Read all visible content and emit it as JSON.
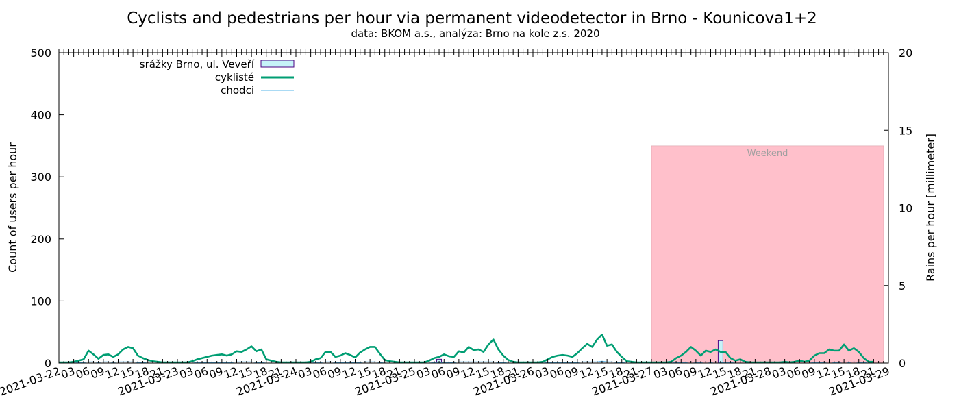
{
  "chart_data": {
    "type": "line",
    "title": "Cyclists and pedestrians per hour via permanent videodetector in Brno - Kounicova1+2",
    "subtitle": "data: BKOM a.s., analýza: Brno na kole z.s. 2020",
    "ylabel": "Count of users per hour",
    "y2label": "Rains per hour [millimeter]",
    "ylim": [
      0,
      500
    ],
    "y2lim": [
      0,
      20
    ],
    "yticks": [
      "0",
      "100",
      "200",
      "300",
      "400",
      "500"
    ],
    "y2ticks": [
      "0",
      "5",
      "10",
      "15",
      "20"
    ],
    "xrange": [
      "2021-03-22 00:00",
      "2021-03-29 00:00"
    ],
    "x_step_hours": 3,
    "xtick_hour_labels": [
      "03",
      "06",
      "09",
      "12",
      "15",
      "18",
      "21"
    ],
    "xtick_day_labels": [
      "2021-03-22",
      "2021-03-23",
      "2021-03-24",
      "2021-03-25",
      "2021-03-26",
      "2021-03-27",
      "2021-03-28",
      "2021-03-29"
    ],
    "legend": {
      "position": "top-left",
      "entries": [
        "srážky Brno, ul. Veveří",
        "cyklisté",
        "chodci"
      ]
    },
    "weekend": {
      "label": "Weekend",
      "start": "2021-03-27 00:00",
      "end": "2021-03-29 00:00",
      "ytop": 350
    },
    "series": [
      {
        "name": "cyklisté",
        "color": "#009e73",
        "values": [
          1,
          1,
          1,
          2,
          4,
          6,
          20,
          14,
          7,
          13,
          14,
          10,
          14,
          22,
          26,
          24,
          12,
          8,
          5,
          3,
          2,
          1,
          1,
          1,
          1,
          1,
          1,
          3,
          6,
          8,
          10,
          12,
          13,
          14,
          12,
          14,
          19,
          18,
          22,
          27,
          19,
          22,
          6,
          4,
          2,
          1,
          1,
          1,
          1,
          1,
          1,
          2,
          6,
          8,
          18,
          18,
          10,
          12,
          16,
          13,
          9,
          17,
          22,
          26,
          26,
          15,
          5,
          3,
          2,
          1,
          1,
          1,
          1,
          1,
          1,
          4,
          8,
          10,
          14,
          11,
          10,
          19,
          17,
          26,
          21,
          22,
          18,
          30,
          38,
          22,
          12,
          5,
          2,
          1,
          1,
          1,
          1,
          1,
          2,
          6,
          10,
          12,
          13,
          12,
          10,
          16,
          24,
          31,
          26,
          38,
          46,
          28,
          30,
          18,
          10,
          3,
          2,
          1,
          1,
          1,
          1,
          1,
          1,
          1,
          2,
          8,
          12,
          18,
          26,
          20,
          12,
          20,
          18,
          22,
          18,
          18,
          8,
          4,
          6,
          2,
          1,
          1,
          1,
          1,
          1,
          1,
          1,
          2,
          1,
          2,
          4,
          2,
          4,
          12,
          16,
          16,
          22,
          20,
          20,
          30,
          20,
          24,
          18,
          8,
          2,
          2
        ]
      },
      {
        "name": "chodci",
        "color": "#56b4e9",
        "values": [
          0,
          0,
          0,
          0,
          1,
          1,
          2,
          2,
          1,
          2,
          2,
          1,
          2,
          2,
          2,
          2,
          1,
          1,
          0,
          0,
          0,
          0,
          0,
          0,
          0,
          0,
          0,
          0,
          1,
          1,
          1,
          1,
          1,
          1,
          1,
          1,
          2,
          2,
          2,
          2,
          1,
          1,
          0,
          0,
          0,
          0,
          0,
          0,
          0,
          0,
          0,
          0,
          1,
          1,
          2,
          2,
          1,
          1,
          1,
          1,
          1,
          1,
          2,
          2,
          2,
          1,
          0,
          0,
          0,
          0,
          0,
          0,
          0,
          0,
          0,
          0,
          1,
          1,
          1,
          1,
          1,
          2,
          2,
          2,
          2,
          2,
          2,
          2,
          2,
          1,
          1,
          0,
          0,
          0,
          0,
          0,
          0,
          0,
          0,
          1,
          1,
          1,
          1,
          1,
          1,
          1,
          2,
          2,
          2,
          2,
          3,
          2,
          2,
          1,
          1,
          0,
          0,
          0,
          0,
          0,
          0,
          0,
          0,
          0,
          0,
          1,
          1,
          1,
          2,
          1,
          1,
          2,
          1,
          2,
          1,
          1,
          1,
          0,
          0,
          0,
          0,
          0,
          0,
          0,
          0,
          0,
          0,
          0,
          0,
          0,
          0,
          0,
          0,
          1,
          1,
          1,
          2,
          1,
          1,
          2,
          1,
          2,
          1,
          1,
          0,
          0
        ]
      },
      {
        "name": "srážky Brno, ul. Veveří",
        "type": "bar",
        "axis": "y2",
        "fill": "#c6f3f8",
        "stroke": "#4b0082",
        "x_hours": [
          77,
          134
        ],
        "values": [
          0.25,
          1.45
        ]
      }
    ]
  }
}
